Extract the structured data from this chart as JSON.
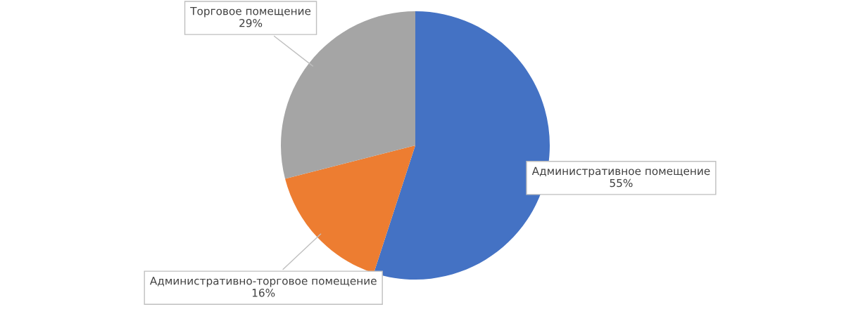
{
  "chart_data": {
    "type": "pie",
    "categories": [
      "Административное помещение",
      "Административно-торговое помещение",
      "Торговое помещение"
    ],
    "values": [
      55,
      16,
      29
    ],
    "value_labels": [
      "55%",
      "16%",
      "29%"
    ],
    "colors": [
      "#4472c4",
      "#ed7d31",
      "#a5a5a5"
    ],
    "legend": false
  }
}
